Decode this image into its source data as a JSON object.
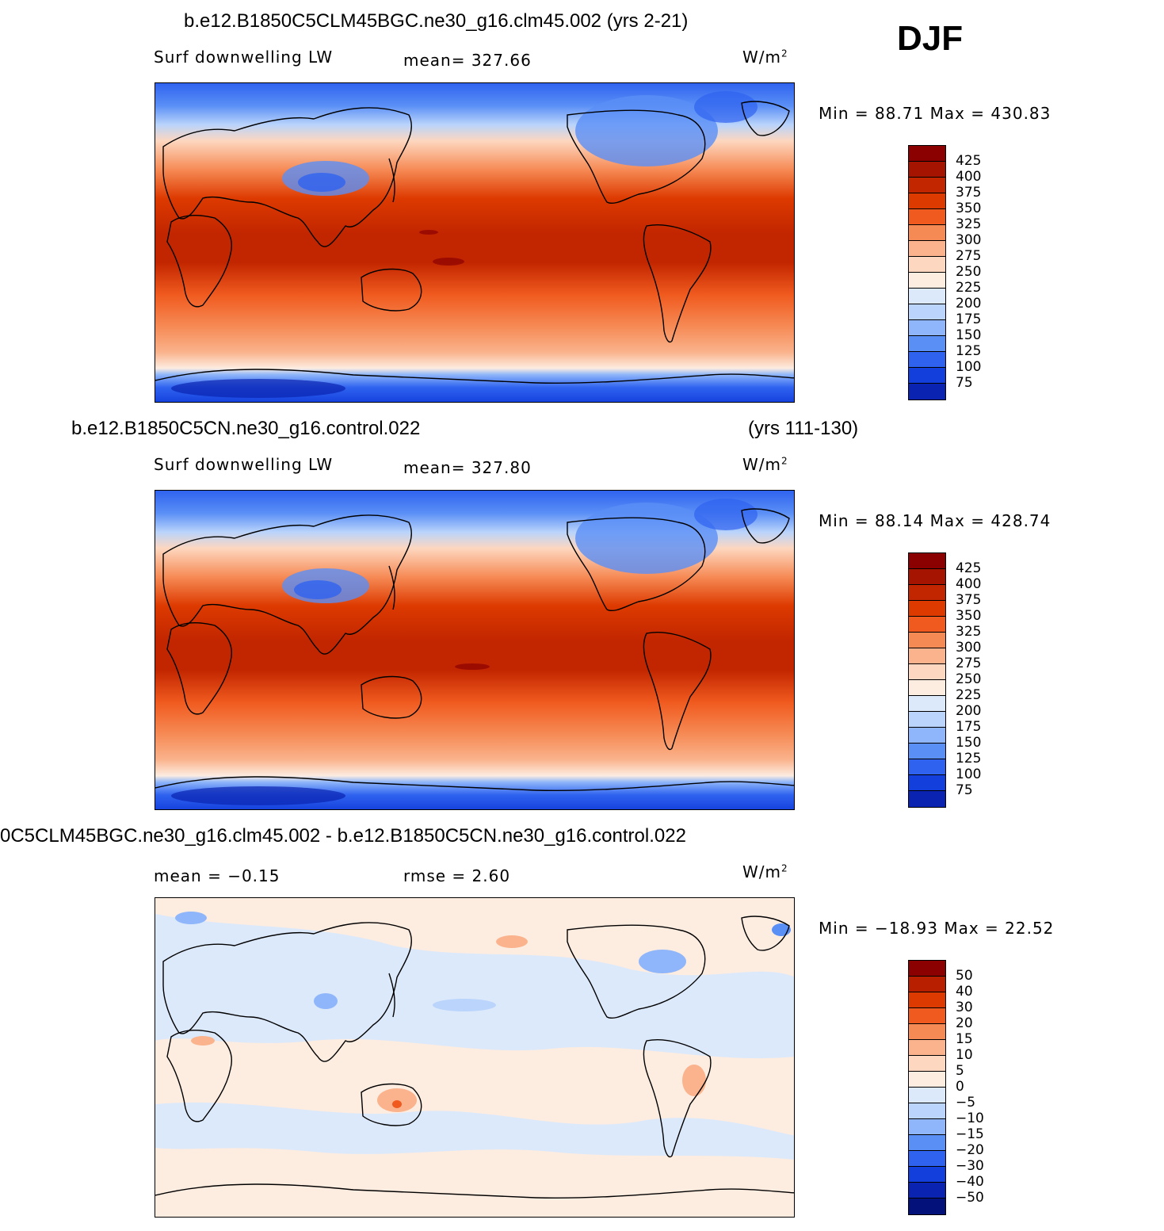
{
  "season": "DJF",
  "units": "W/m",
  "units_sup": "2",
  "panels": [
    {
      "title": "b.e12.B1850C5CLM45BGC.ne30_g16.clm45.002 (yrs 2-21)",
      "title_right": "",
      "left_label": "Surf downwelling LW",
      "mid_label": "mean=  327.66",
      "minmax": "Min =   88.71  Max  =  430.83",
      "ticks": [
        "425",
        "400",
        "375",
        "350",
        "325",
        "300",
        "275",
        "250",
        "225",
        "200",
        "175",
        "150",
        "125",
        "100",
        "75"
      ]
    },
    {
      "title": "b.e12.B1850C5CN.ne30_g16.control.022",
      "title_right": "(yrs 111-130)",
      "left_label": "Surf downwelling LW",
      "mid_label": "mean=  327.80",
      "minmax": "Min =   88.14  Max  =  428.74",
      "ticks": [
        "425",
        "400",
        "375",
        "350",
        "325",
        "300",
        "275",
        "250",
        "225",
        "200",
        "175",
        "150",
        "125",
        "100",
        "75"
      ]
    },
    {
      "title": "0C5CLM45BGC.ne30_g16.clm45.002 - b.e12.B1850C5CN.ne30_g16.control.022",
      "title_right": "",
      "left_label": "mean =    −0.15",
      "mid_label": "rmse =      2.60",
      "minmax": "Min  =  −18.93  Max  =    22.52",
      "ticks": [
        "50",
        "40",
        "30",
        "20",
        "15",
        "10",
        "5",
        "0",
        "−5",
        "−10",
        "−15",
        "−20",
        "−30",
        "−40",
        "−50"
      ]
    }
  ],
  "colors": {
    "abs_scale": [
      "#8b0000",
      "#a51400",
      "#c22600",
      "#dd3a00",
      "#f05a1e",
      "#f68a55",
      "#fab38c",
      "#fdd7bf",
      "#fdece0",
      "#dce9fb",
      "#bad4fb",
      "#8fb6fa",
      "#5a8ff6",
      "#2f63ef",
      "#133fdc",
      "#0a23b0",
      "#03117a"
    ],
    "diff_scale": [
      "#8b0000",
      "#b81e00",
      "#dc3a00",
      "#f05a1e",
      "#f68a55",
      "#fab38c",
      "#fdd7bf",
      "#fdece0",
      "#dce9fb",
      "#bad4fb",
      "#8fb6fa",
      "#5a8ff6",
      "#2f63ef",
      "#133fdc",
      "#0a23b0",
      "#03117a"
    ]
  }
}
